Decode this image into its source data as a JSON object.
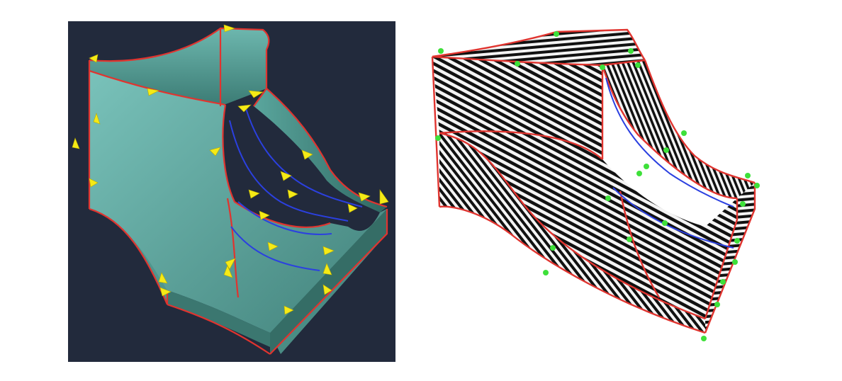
{
  "left_panel": {
    "background_color": "#222a3c",
    "surface_color": "#5fa8a0",
    "edge_color": "#e0342f",
    "feature_curve_color": "#2b40e0",
    "arrow_color": "#f5ea16",
    "arrow_icon": "cone-arrow-icon"
  },
  "right_panel": {
    "background_color": "#ffffff",
    "stripe_colors": [
      "#000000",
      "#ffffff"
    ],
    "edge_color": "#e0342f",
    "feature_curve_color": "#2b40e0",
    "marker_color": "#3ee03a",
    "marker_icon": "dot-marker-icon"
  }
}
